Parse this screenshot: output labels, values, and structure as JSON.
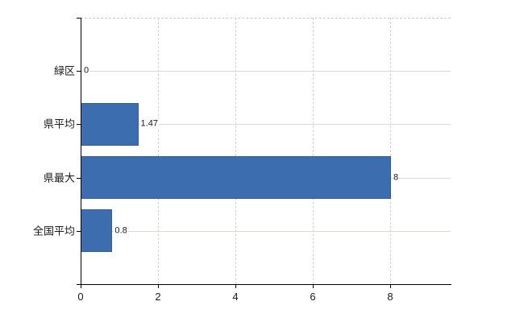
{
  "chart_data": {
    "type": "bar",
    "orientation": "horizontal",
    "title": "",
    "xlabel": "",
    "ylabel": "",
    "categories": [
      "緑区",
      "県平均",
      "県最大",
      "全国平均"
    ],
    "values": [
      0,
      1.47,
      8,
      0.8
    ],
    "value_labels": [
      "0",
      "1.47",
      "8",
      "0.8"
    ],
    "x_ticks": [
      0,
      2,
      4,
      6,
      8
    ],
    "x_tick_labels": [
      "0",
      "2",
      "4",
      "6",
      "8"
    ],
    "xlim": [
      0,
      9.5625
    ],
    "grid": true,
    "legend": false,
    "colors": {
      "bar_fill": "#3c6dae",
      "bar_border": "#2f5f9c",
      "axis": "#000000",
      "h_gridline": "#d6dcd2",
      "v_gridline": "#d2d2d2",
      "top_border": "#c9c9c9",
      "text": "#1a1a1a",
      "background": "#ffffff"
    }
  }
}
